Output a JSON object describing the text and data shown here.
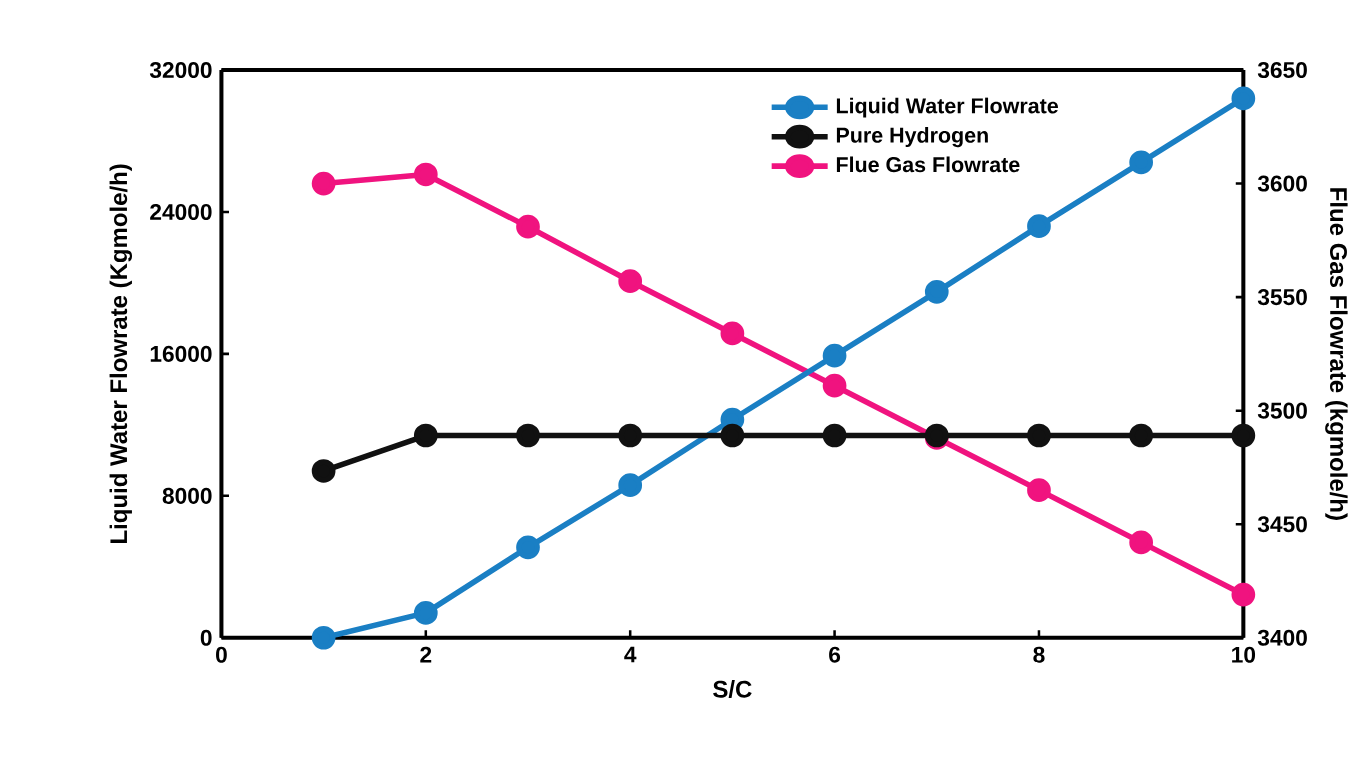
{
  "chart_data": {
    "type": "line",
    "xlabel": "S/C",
    "ylabel": "Liquid Water Flowrate (Kgmole/h)",
    "y2label": "Flue Gas Flowrate (kgmole/h)",
    "x": [
      1,
      2,
      3,
      4,
      5,
      6,
      7,
      8,
      9,
      10
    ],
    "series": [
      {
        "name": "Liquid Water Flowrate",
        "color": "#1a7fc4",
        "values": [
          0,
          1400,
          5100,
          8600,
          12300,
          15900,
          19500,
          23200,
          26800,
          30400
        ]
      },
      {
        "name": "Pure Hydrogen",
        "color": "#111111",
        "values": [
          9400,
          11400,
          11400,
          11400,
          11400,
          11400,
          11400,
          11400,
          11400,
          11400
        ]
      },
      {
        "name": "Flue Gas Flowrate",
        "color": "#f0137f",
        "axis": "y2",
        "values": [
          3600,
          3604,
          3581,
          3557,
          3534,
          3511,
          3488,
          3465,
          3442,
          3419
        ]
      }
    ],
    "xlim": [
      0,
      10
    ],
    "xticks": [
      0,
      2,
      4,
      6,
      8,
      10
    ],
    "ylim": [
      0,
      32000
    ],
    "yticks": [
      0,
      8000,
      16000,
      24000,
      32000
    ],
    "y2lim": [
      3400,
      3650
    ],
    "y2ticks": [
      3400,
      3450,
      3500,
      3550,
      3600,
      3650
    ],
    "legend": "top",
    "marker": "circle",
    "line_style": "solid",
    "grid": false
  }
}
